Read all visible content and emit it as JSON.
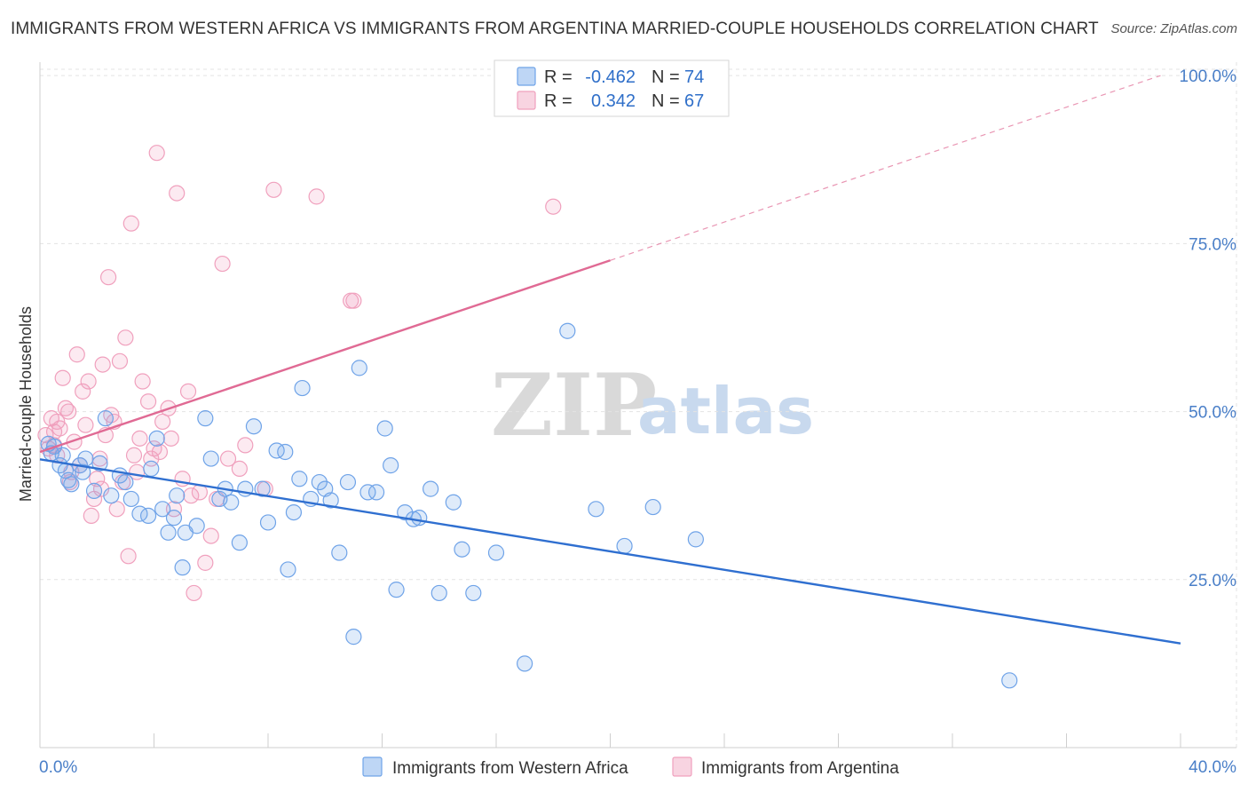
{
  "header": {
    "title": "IMMIGRANTS FROM WESTERN AFRICA VS IMMIGRANTS FROM ARGENTINA MARRIED-COUPLE HOUSEHOLDS CORRELATION CHART",
    "source": "Source: ZipAtlas.com"
  },
  "watermark": {
    "zip": "ZIP",
    "atlas": "atlas"
  },
  "colors": {
    "blue": "#6fa3e8",
    "blue_line": "#2f6fd0",
    "pink": "#f0a0bd",
    "pink_line": "#e06a94",
    "tick_text": "#4a7fc8"
  },
  "legend": {
    "rows": [
      {
        "r_label": "R =",
        "r_value": "-0.462",
        "n_label": "N =",
        "n_value": "74"
      },
      {
        "r_label": "R =",
        "r_value": "0.342",
        "n_label": "N =",
        "n_value": "67"
      }
    ]
  },
  "bottom_legend": [
    {
      "label": "Immigrants from Western Africa"
    },
    {
      "label": "Immigrants from Argentina"
    }
  ],
  "chart_data": {
    "type": "scatter",
    "title": "IMMIGRANTS FROM WESTERN AFRICA VS IMMIGRANTS FROM ARGENTINA MARRIED-COUPLE HOUSEHOLDS CORRELATION CHART",
    "xlabel": "",
    "ylabel": "Married-couple Households",
    "xlim": [
      0,
      40
    ],
    "ylim": [
      0,
      102
    ],
    "x_tick_labels": [
      "0.0%",
      "40.0%"
    ],
    "y_ticks": [
      {
        "value": 25,
        "label": "25.0%"
      },
      {
        "value": 50,
        "label": "50.0%"
      },
      {
        "value": 75,
        "label": "75.0%"
      },
      {
        "value": 100,
        "label": "100.0%"
      }
    ],
    "grid": true,
    "legend_position": "top-center",
    "series": [
      {
        "name": "Immigrants from Western Africa",
        "r": -0.462,
        "n": 74,
        "trend": {
          "x": [
            0,
            40
          ],
          "y": [
            42.9,
            15.5
          ],
          "dashed_from_x": null
        },
        "points": [
          [
            0.3,
            45.2
          ],
          [
            0.5,
            44.8
          ],
          [
            0.7,
            42.0
          ],
          [
            0.8,
            43.5
          ],
          [
            1.0,
            39.8
          ],
          [
            1.1,
            39.2
          ],
          [
            1.4,
            42.0
          ],
          [
            1.5,
            41.0
          ],
          [
            1.6,
            43.0
          ],
          [
            1.9,
            38.2
          ],
          [
            2.1,
            42.3
          ],
          [
            2.5,
            37.5
          ],
          [
            2.8,
            40.5
          ],
          [
            3.0,
            39.5
          ],
          [
            3.5,
            34.8
          ],
          [
            3.8,
            34.5
          ],
          [
            3.9,
            41.5
          ],
          [
            4.1,
            46.0
          ],
          [
            4.3,
            35.5
          ],
          [
            4.7,
            34.2
          ],
          [
            4.8,
            37.5
          ],
          [
            5.1,
            32.0
          ],
          [
            5.5,
            33.0
          ],
          [
            5.8,
            49.0
          ],
          [
            6.3,
            37.0
          ],
          [
            6.5,
            38.5
          ],
          [
            6.7,
            36.5
          ],
          [
            7.0,
            30.5
          ],
          [
            7.2,
            38.5
          ],
          [
            7.5,
            47.8
          ],
          [
            7.8,
            38.5
          ],
          [
            8.0,
            33.5
          ],
          [
            8.3,
            44.2
          ],
          [
            8.6,
            44.0
          ],
          [
            8.9,
            35.0
          ],
          [
            9.2,
            53.5
          ],
          [
            9.5,
            37.0
          ],
          [
            9.8,
            39.5
          ],
          [
            10.0,
            38.5
          ],
          [
            10.2,
            36.8
          ],
          [
            10.5,
            29.0
          ],
          [
            10.8,
            39.5
          ],
          [
            11.2,
            56.5
          ],
          [
            11.5,
            38.0
          ],
          [
            11.8,
            38.0
          ],
          [
            12.1,
            47.5
          ],
          [
            12.3,
            42.0
          ],
          [
            12.5,
            23.5
          ],
          [
            12.8,
            35.0
          ],
          [
            13.1,
            34.0
          ],
          [
            13.3,
            34.2
          ],
          [
            13.7,
            38.5
          ],
          [
            14.0,
            23.0
          ],
          [
            14.5,
            36.5
          ],
          [
            14.8,
            29.5
          ],
          [
            15.2,
            23.0
          ],
          [
            16.0,
            29.0
          ],
          [
            17.0,
            12.5
          ],
          [
            18.5,
            62.0
          ],
          [
            19.5,
            35.5
          ],
          [
            20.5,
            30.0
          ],
          [
            21.5,
            35.8
          ],
          [
            23.0,
            31.0
          ],
          [
            34.0,
            10.0
          ],
          [
            0.4,
            43.8
          ],
          [
            2.3,
            49.0
          ],
          [
            3.2,
            37.0
          ],
          [
            6.0,
            43.0
          ],
          [
            8.7,
            26.5
          ],
          [
            5.0,
            26.8
          ],
          [
            11.0,
            16.5
          ],
          [
            0.9,
            41.2
          ],
          [
            4.5,
            32.0
          ],
          [
            9.1,
            40.0
          ]
        ]
      },
      {
        "name": "Immigrants from Argentina",
        "r": 0.342,
        "n": 67,
        "trend": {
          "x": [
            0,
            40
          ],
          "y": [
            44.0,
            101.0
          ],
          "dashed_from_x": 20
        },
        "points": [
          [
            0.2,
            46.5
          ],
          [
            0.3,
            44.5
          ],
          [
            0.4,
            49.0
          ],
          [
            0.5,
            47.0
          ],
          [
            0.6,
            48.5
          ],
          [
            0.7,
            47.5
          ],
          [
            0.8,
            55.0
          ],
          [
            0.9,
            50.5
          ],
          [
            1.0,
            50.0
          ],
          [
            1.1,
            41.0
          ],
          [
            1.2,
            45.5
          ],
          [
            1.3,
            58.5
          ],
          [
            1.5,
            53.0
          ],
          [
            1.6,
            48.0
          ],
          [
            1.7,
            54.5
          ],
          [
            1.8,
            34.5
          ],
          [
            2.0,
            40.0
          ],
          [
            2.1,
            43.0
          ],
          [
            2.2,
            57.0
          ],
          [
            2.3,
            46.5
          ],
          [
            2.4,
            70.0
          ],
          [
            2.5,
            49.5
          ],
          [
            2.6,
            48.5
          ],
          [
            2.7,
            35.5
          ],
          [
            2.8,
            57.5
          ],
          [
            3.0,
            61.0
          ],
          [
            3.1,
            28.5
          ],
          [
            3.2,
            78.0
          ],
          [
            3.3,
            43.5
          ],
          [
            3.5,
            46.0
          ],
          [
            3.6,
            54.5
          ],
          [
            3.8,
            51.5
          ],
          [
            3.9,
            43.0
          ],
          [
            4.0,
            44.5
          ],
          [
            4.1,
            88.5
          ],
          [
            4.3,
            48.5
          ],
          [
            4.5,
            50.5
          ],
          [
            4.6,
            46.0
          ],
          [
            4.7,
            35.5
          ],
          [
            4.8,
            82.5
          ],
          [
            5.0,
            40.0
          ],
          [
            5.2,
            53.0
          ],
          [
            5.4,
            23.0
          ],
          [
            5.6,
            38.0
          ],
          [
            5.8,
            27.5
          ],
          [
            6.0,
            31.5
          ],
          [
            6.2,
            37.0
          ],
          [
            6.4,
            72.0
          ],
          [
            6.6,
            43.0
          ],
          [
            7.0,
            41.5
          ],
          [
            7.2,
            45.0
          ],
          [
            7.9,
            38.5
          ],
          [
            8.2,
            83.0
          ],
          [
            9.7,
            82.0
          ],
          [
            10.9,
            66.5
          ],
          [
            11.0,
            66.5
          ],
          [
            18.0,
            80.5
          ],
          [
            0.5,
            45.0
          ],
          [
            1.4,
            42.0
          ],
          [
            2.9,
            39.5
          ],
          [
            3.4,
            41.0
          ],
          [
            1.9,
            37.0
          ],
          [
            0.6,
            43.5
          ],
          [
            4.2,
            44.0
          ],
          [
            2.15,
            38.5
          ],
          [
            5.3,
            37.5
          ],
          [
            1.05,
            39.5
          ]
        ]
      }
    ]
  }
}
